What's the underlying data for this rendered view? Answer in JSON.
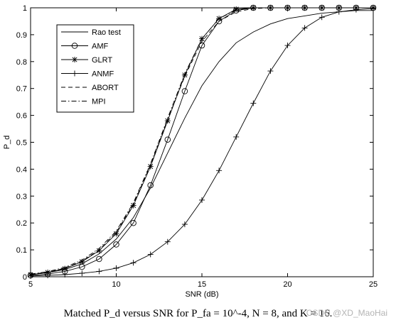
{
  "chart_data": {
    "type": "line",
    "caption": "Matched P_d versus SNR for P_fa = 10^-4, N = 8, and K = 16.",
    "xlabel": "SNR (dB)",
    "ylabel": "P_d",
    "xlim": [
      5,
      25
    ],
    "ylim": [
      0,
      1
    ],
    "xticks": [
      5,
      10,
      15,
      20,
      25
    ],
    "yticks": [
      0,
      0.1,
      0.2,
      0.3,
      0.4,
      0.5,
      0.6,
      0.7,
      0.8,
      0.9,
      1
    ],
    "grid": false,
    "legend_position": "top-left",
    "series": [
      {
        "name": "Rao test",
        "linestyle": "solid",
        "marker": "none",
        "x": [
          5,
          6,
          7,
          8,
          9,
          10,
          11,
          12,
          13,
          14,
          15,
          16,
          17,
          18,
          19,
          20,
          21,
          22,
          23,
          24,
          25
        ],
        "y": [
          0.008,
          0.015,
          0.027,
          0.048,
          0.085,
          0.14,
          0.22,
          0.33,
          0.46,
          0.59,
          0.71,
          0.8,
          0.87,
          0.91,
          0.94,
          0.96,
          0.97,
          0.98,
          0.985,
          0.99,
          0.99
        ]
      },
      {
        "name": "AMF",
        "linestyle": "solid",
        "marker": "circle",
        "x": [
          5,
          6,
          7,
          8,
          9,
          10,
          11,
          12,
          13,
          14,
          15,
          16,
          17,
          18,
          19,
          20,
          21,
          22,
          23,
          24,
          25
        ],
        "y": [
          0.005,
          0.01,
          0.02,
          0.037,
          0.066,
          0.12,
          0.2,
          0.34,
          0.51,
          0.69,
          0.86,
          0.95,
          0.99,
          1.0,
          1.0,
          1.0,
          1.0,
          1.0,
          1.0,
          1.0,
          1.0
        ]
      },
      {
        "name": "GLRT",
        "linestyle": "solid",
        "marker": "star",
        "x": [
          5,
          6,
          7,
          8,
          9,
          10,
          11,
          12,
          13,
          14,
          15,
          16,
          17,
          18,
          19,
          20,
          21,
          22,
          23,
          24,
          25
        ],
        "y": [
          0.008,
          0.016,
          0.03,
          0.056,
          0.097,
          0.16,
          0.265,
          0.41,
          0.58,
          0.75,
          0.885,
          0.96,
          0.995,
          1.0,
          1.0,
          1.0,
          1.0,
          1.0,
          1.0,
          1.0,
          1.0
        ]
      },
      {
        "name": "ANMF",
        "linestyle": "solid",
        "marker": "plus",
        "x": [
          5,
          6,
          7,
          8,
          9,
          10,
          11,
          12,
          13,
          14,
          15,
          16,
          17,
          18,
          19,
          20,
          21,
          22,
          23,
          24,
          25
        ],
        "y": [
          0.003,
          0.005,
          0.008,
          0.013,
          0.02,
          0.032,
          0.052,
          0.083,
          0.13,
          0.195,
          0.285,
          0.395,
          0.52,
          0.645,
          0.765,
          0.86,
          0.925,
          0.965,
          0.985,
          0.993,
          0.997
        ]
      },
      {
        "name": "ABORT",
        "linestyle": "dashed",
        "marker": "none",
        "x": [
          5,
          6,
          7,
          8,
          9,
          10,
          11,
          12,
          13,
          14,
          15,
          16,
          17,
          18,
          19,
          20,
          21,
          22,
          23,
          24,
          25
        ],
        "y": [
          0.009,
          0.017,
          0.032,
          0.058,
          0.1,
          0.165,
          0.27,
          0.415,
          0.585,
          0.745,
          0.875,
          0.95,
          0.985,
          0.997,
          1.0,
          1.0,
          1.0,
          1.0,
          1.0,
          1.0,
          1.0
        ]
      },
      {
        "name": "MPI",
        "linestyle": "dashdot",
        "marker": "none",
        "x": [
          5,
          6,
          7,
          8,
          9,
          10,
          11,
          12,
          13,
          14,
          15,
          16,
          17,
          18,
          19,
          20,
          21,
          22,
          23,
          24,
          25
        ],
        "y": [
          0.01,
          0.019,
          0.035,
          0.062,
          0.105,
          0.17,
          0.275,
          0.42,
          0.59,
          0.755,
          0.885,
          0.96,
          0.992,
          1.0,
          1.0,
          1.0,
          1.0,
          1.0,
          1.0,
          1.0,
          1.0
        ]
      }
    ]
  },
  "watermark": "CSDN @XD_MaoHai"
}
